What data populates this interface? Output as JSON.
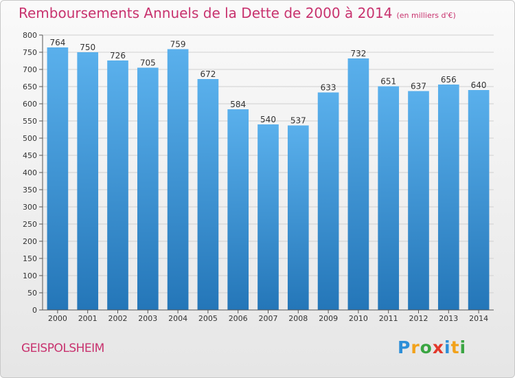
{
  "title": "Remboursements Annuels de la Dette de 2000 à 2014",
  "unit": "(en milliers d'€)",
  "town": "GEISPOLSHEIM",
  "logo": "Proxiti",
  "colors": {
    "title": "#c8326e",
    "bar_top": "#5ab0ec",
    "bar_bottom": "#2476b8",
    "grid": "#d0d0d0"
  },
  "chart_data": {
    "type": "bar",
    "title": "Remboursements Annuels de la Dette de 2000 à 2014",
    "subtitle": "(en milliers d'€)",
    "xlabel": "",
    "ylabel": "",
    "categories": [
      "2000",
      "2001",
      "2002",
      "2003",
      "2004",
      "2005",
      "2006",
      "2007",
      "2008",
      "2009",
      "2010",
      "2011",
      "2012",
      "2013",
      "2014"
    ],
    "values": [
      764,
      750,
      726,
      705,
      759,
      672,
      584,
      540,
      537,
      633,
      732,
      651,
      637,
      656,
      640
    ],
    "ylim": [
      0,
      800
    ],
    "yticks": [
      0,
      50,
      100,
      150,
      200,
      250,
      300,
      350,
      400,
      450,
      500,
      550,
      600,
      650,
      700,
      750,
      800
    ],
    "grid": true,
    "legend": "none",
    "data_labels": true
  }
}
